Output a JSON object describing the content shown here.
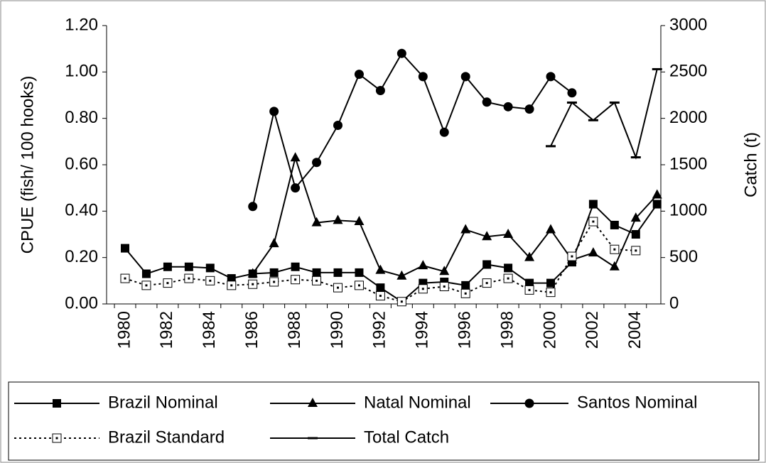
{
  "chart_data": {
    "type": "line",
    "y_label": "CPUE (fish/ 100 hooks)",
    "y2_label": "Catch (t)",
    "categories": [
      "1980",
      null,
      "1982",
      null,
      "1984",
      null,
      "1986",
      null,
      "1988",
      null,
      "1990",
      null,
      "1992",
      null,
      "1994",
      null,
      "1996",
      null,
      "1998",
      null,
      "2000",
      null,
      "2002",
      null,
      "2004",
      null
    ],
    "ylim": [
      0,
      1.2
    ],
    "yticks": [
      {
        "value": 0,
        "label": "0.00"
      },
      {
        "value": 0.2,
        "label": "0.20"
      },
      {
        "value": 0.4,
        "label": "0.40"
      },
      {
        "value": 0.6,
        "label": "0.60"
      },
      {
        "value": 0.8,
        "label": "0.80"
      },
      {
        "value": 1,
        "label": "1.00"
      },
      {
        "value": 1.2,
        "label": "1.20"
      }
    ],
    "y2lim": [
      0,
      3000
    ],
    "y2ticks": [
      0,
      500,
      1000,
      1500,
      2000,
      2500,
      3000
    ],
    "series": [
      {
        "name": "Brazil Nominal",
        "color": "#000000",
        "marker": "square",
        "line_style": "solid",
        "values": [
          0.24,
          0.13,
          0.16,
          0.16,
          0.155,
          0.11,
          0.13,
          0.135,
          0.16,
          0.135,
          0.135,
          0.135,
          0.07,
          0.01,
          0.09,
          0.095,
          0.08,
          0.17,
          0.155,
          0.09,
          0.09,
          0.18,
          0.43,
          0.34,
          0.3,
          0.43
        ]
      },
      {
        "name": "Natal Nominal",
        "color": "#000000",
        "marker": "triangle",
        "line_style": "solid",
        "values": [
          null,
          null,
          null,
          null,
          null,
          null,
          0.13,
          0.26,
          0.63,
          0.35,
          0.36,
          0.355,
          0.145,
          0.12,
          0.165,
          0.14,
          0.32,
          0.29,
          0.3,
          0.2,
          0.32,
          0.19,
          0.22,
          0.16,
          0.37,
          0.47
        ]
      },
      {
        "name": "Santos Nominal",
        "color": "#000000",
        "marker": "circle",
        "line_style": "solid",
        "values": [
          null,
          null,
          null,
          null,
          null,
          null,
          0.42,
          0.83,
          0.5,
          0.61,
          0.77,
          0.99,
          0.92,
          1.08,
          0.98,
          0.74,
          0.98,
          0.87,
          0.85,
          0.84,
          0.98,
          0.91,
          null,
          null,
          null,
          null
        ]
      },
      {
        "name": "Brazil Standard",
        "color": "#000000",
        "marker": "open-square",
        "line_style": "dotted",
        "values": [
          0.11,
          0.08,
          0.09,
          0.11,
          0.1,
          0.08,
          0.085,
          0.095,
          0.105,
          0.1,
          0.07,
          0.08,
          0.035,
          0.01,
          0.065,
          0.075,
          0.045,
          0.09,
          0.11,
          0.06,
          0.05,
          0.205,
          0.355,
          0.235,
          0.23,
          null
        ]
      },
      {
        "name": "Total Catch",
        "color": "#000000",
        "marker": "dash",
        "line_style": "solid",
        "axis": "y2",
        "values": [
          null,
          null,
          null,
          null,
          null,
          null,
          null,
          null,
          null,
          null,
          null,
          null,
          null,
          null,
          null,
          null,
          null,
          null,
          null,
          null,
          1700,
          2170,
          1980,
          2170,
          1580,
          2530
        ]
      }
    ]
  }
}
